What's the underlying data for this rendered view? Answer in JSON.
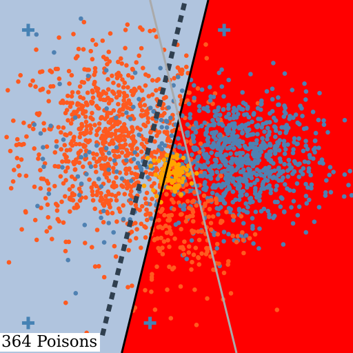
{
  "caption": "364 Poisons",
  "chart_data": {
    "type": "scatter",
    "xlim": [
      -10,
      10
    ],
    "ylim": [
      -10,
      10
    ],
    "grid": false,
    "axes_visible": false,
    "colors": {
      "region_left": "#b0c4de",
      "region_right": "#ff0000",
      "class_orange": "#ff5a1f",
      "class_blue": "#4f81b2",
      "poison_points": "#ffa500",
      "marker_plus": "#4682b4",
      "boundary_solid": "#000000",
      "boundary_dashed": "#2f3f4f",
      "boundary_grey": "#aaaaaa"
    },
    "regions": [
      {
        "class": "blue-region",
        "side": "left"
      },
      {
        "class": "red-region",
        "side": "right"
      }
    ],
    "boundaries": [
      {
        "style": "solid",
        "points": [
          [
            -3.1,
            -10
          ],
          [
            1.8,
            10
          ]
        ]
      },
      {
        "style": "dashed",
        "points": [
          [
            -4.2,
            -9.0
          ],
          [
            0.5,
            10
          ]
        ]
      },
      {
        "style": "solid-grey",
        "points": [
          [
            -1.5,
            10
          ],
          [
            3.4,
            -10
          ]
        ]
      }
    ],
    "plus_markers": [
      [
        -8.4,
        8.3
      ],
      [
        2.7,
        8.3
      ],
      [
        -8.4,
        -8.3
      ],
      [
        -1.5,
        -8.3
      ]
    ],
    "clusters": [
      {
        "name": "",
        "color_key": "class_orange",
        "cx": -3.6,
        "cy": 2.0,
        "sx": 2.6,
        "sy": 2.7,
        "n": 850
      },
      {
        "name": "",
        "color_key": "class_blue",
        "cx": 3.5,
        "cy": 0.9,
        "sx": 2.3,
        "sy": 1.9,
        "n": 820
      },
      {
        "name": "",
        "color_key": "class_orange",
        "cx": 0.6,
        "cy": -2.8,
        "sx": 1.8,
        "sy": 2.2,
        "n": 180
      },
      {
        "name": "",
        "color_key": "class_blue",
        "cx": -4.0,
        "cy": 1.5,
        "sx": 2.8,
        "sy": 3.0,
        "n": 70
      },
      {
        "name": "",
        "color_key": "poison_points",
        "cx": -0.3,
        "cy": 0.2,
        "sx": 0.55,
        "sy": 0.55,
        "n": 90
      }
    ]
  }
}
